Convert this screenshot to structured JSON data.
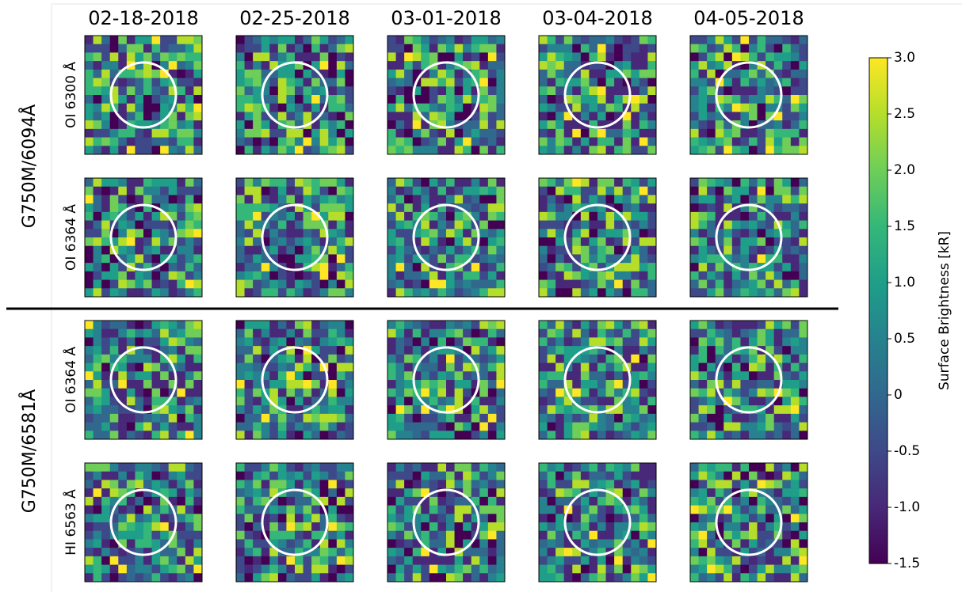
{
  "chart_data": {
    "type": "heatmap-grid",
    "columns": [
      "02-18-2018",
      "02-25-2018",
      "03-01-2018",
      "03-04-2018",
      "04-05-2018"
    ],
    "groups": [
      {
        "name": "G750M/6094Å",
        "rows": [
          "OI 6300 Å",
          "OI 6364 Å"
        ]
      },
      {
        "name": "G750M/6581Å",
        "rows": [
          "OI 6364 Å",
          "HI 6563 Å"
        ]
      }
    ],
    "colorbar_label": "Surface Brightness [kR]",
    "clim": [
      -1.5,
      3.0
    ],
    "cticks": [
      {
        "value": -1.5,
        "label": "-1.5"
      },
      {
        "value": -1.0,
        "label": "-1.0"
      },
      {
        "value": -0.5,
        "label": "-0.5"
      },
      0,
      {
        "value": 0.5,
        "label": "0.5"
      },
      {
        "value": 1.0,
        "label": "1.0"
      },
      {
        "value": 1.5,
        "label": "1.5"
      },
      {
        "value": 2.0,
        "label": "2.0"
      },
      {
        "value": 2.5,
        "label": "2.5"
      },
      {
        "value": 3.0,
        "label": "3.0"
      }
    ],
    "colormap": [
      "#440154",
      "#482878",
      "#3e4989",
      "#31688e",
      "#26828e",
      "#1f9e89",
      "#35b779",
      "#6ece58",
      "#b5de2b",
      "#fde725"
    ]
  }
}
